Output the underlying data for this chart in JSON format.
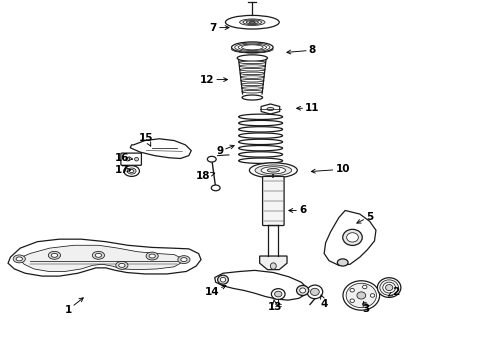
{
  "background_color": "#ffffff",
  "figsize": [
    4.9,
    3.6
  ],
  "dpi": 100,
  "line_color": "#1a1a1a",
  "text_color": "#000000",
  "font_size": 7.5,
  "label_positions": {
    "7": [
      0.435,
      0.925,
      0.475,
      0.925
    ],
    "8": [
      0.638,
      0.862,
      0.578,
      0.855
    ],
    "12": [
      0.422,
      0.78,
      0.472,
      0.78
    ],
    "11": [
      0.638,
      0.7,
      0.598,
      0.7
    ],
    "9": [
      0.448,
      0.58,
      0.485,
      0.6
    ],
    "10": [
      0.7,
      0.53,
      0.628,
      0.523
    ],
    "6": [
      0.618,
      0.415,
      0.582,
      0.415
    ],
    "15": [
      0.298,
      0.618,
      0.308,
      0.592
    ],
    "16": [
      0.248,
      0.562,
      0.272,
      0.558
    ],
    "17": [
      0.248,
      0.528,
      0.268,
      0.528
    ],
    "18": [
      0.415,
      0.51,
      0.44,
      0.52
    ],
    "5": [
      0.755,
      0.398,
      0.722,
      0.375
    ],
    "1": [
      0.138,
      0.138,
      0.175,
      0.178
    ],
    "14": [
      0.432,
      0.188,
      0.468,
      0.21
    ],
    "13": [
      0.562,
      0.145,
      0.558,
      0.175
    ],
    "4": [
      0.662,
      0.155,
      0.655,
      0.182
    ],
    "3": [
      0.748,
      0.14,
      0.742,
      0.162
    ],
    "2": [
      0.808,
      0.188,
      0.792,
      0.175
    ]
  }
}
